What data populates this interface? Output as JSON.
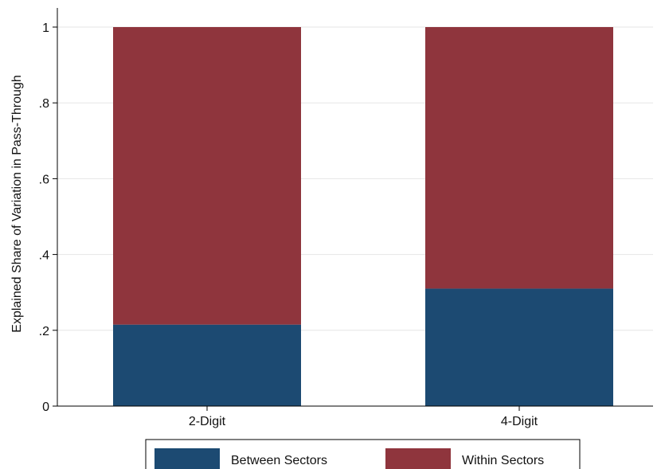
{
  "chart_data": {
    "type": "bar",
    "stacked": true,
    "categories": [
      "2-Digit",
      "4-Digit"
    ],
    "series": [
      {
        "name": "Between Sectors",
        "color": "#1c4a72",
        "values": [
          0.215,
          0.31
        ]
      },
      {
        "name": "Within Sectors",
        "color": "#8f353d",
        "values": [
          0.785,
          0.69
        ]
      }
    ],
    "ylabel": "Explained Share of Variation in Pass-Through",
    "xlabel": "",
    "ylim": [
      0,
      1
    ],
    "yticks": [
      {
        "value": 0,
        "label": "0"
      },
      {
        "value": 0.2,
        "label": ".2"
      },
      {
        "value": 0.4,
        "label": ".4"
      },
      {
        "value": 0.6,
        "label": ".6"
      },
      {
        "value": 0.8,
        "label": ".8"
      },
      {
        "value": 1,
        "label": "1"
      }
    ],
    "grid": true,
    "legend_position": "bottom"
  }
}
